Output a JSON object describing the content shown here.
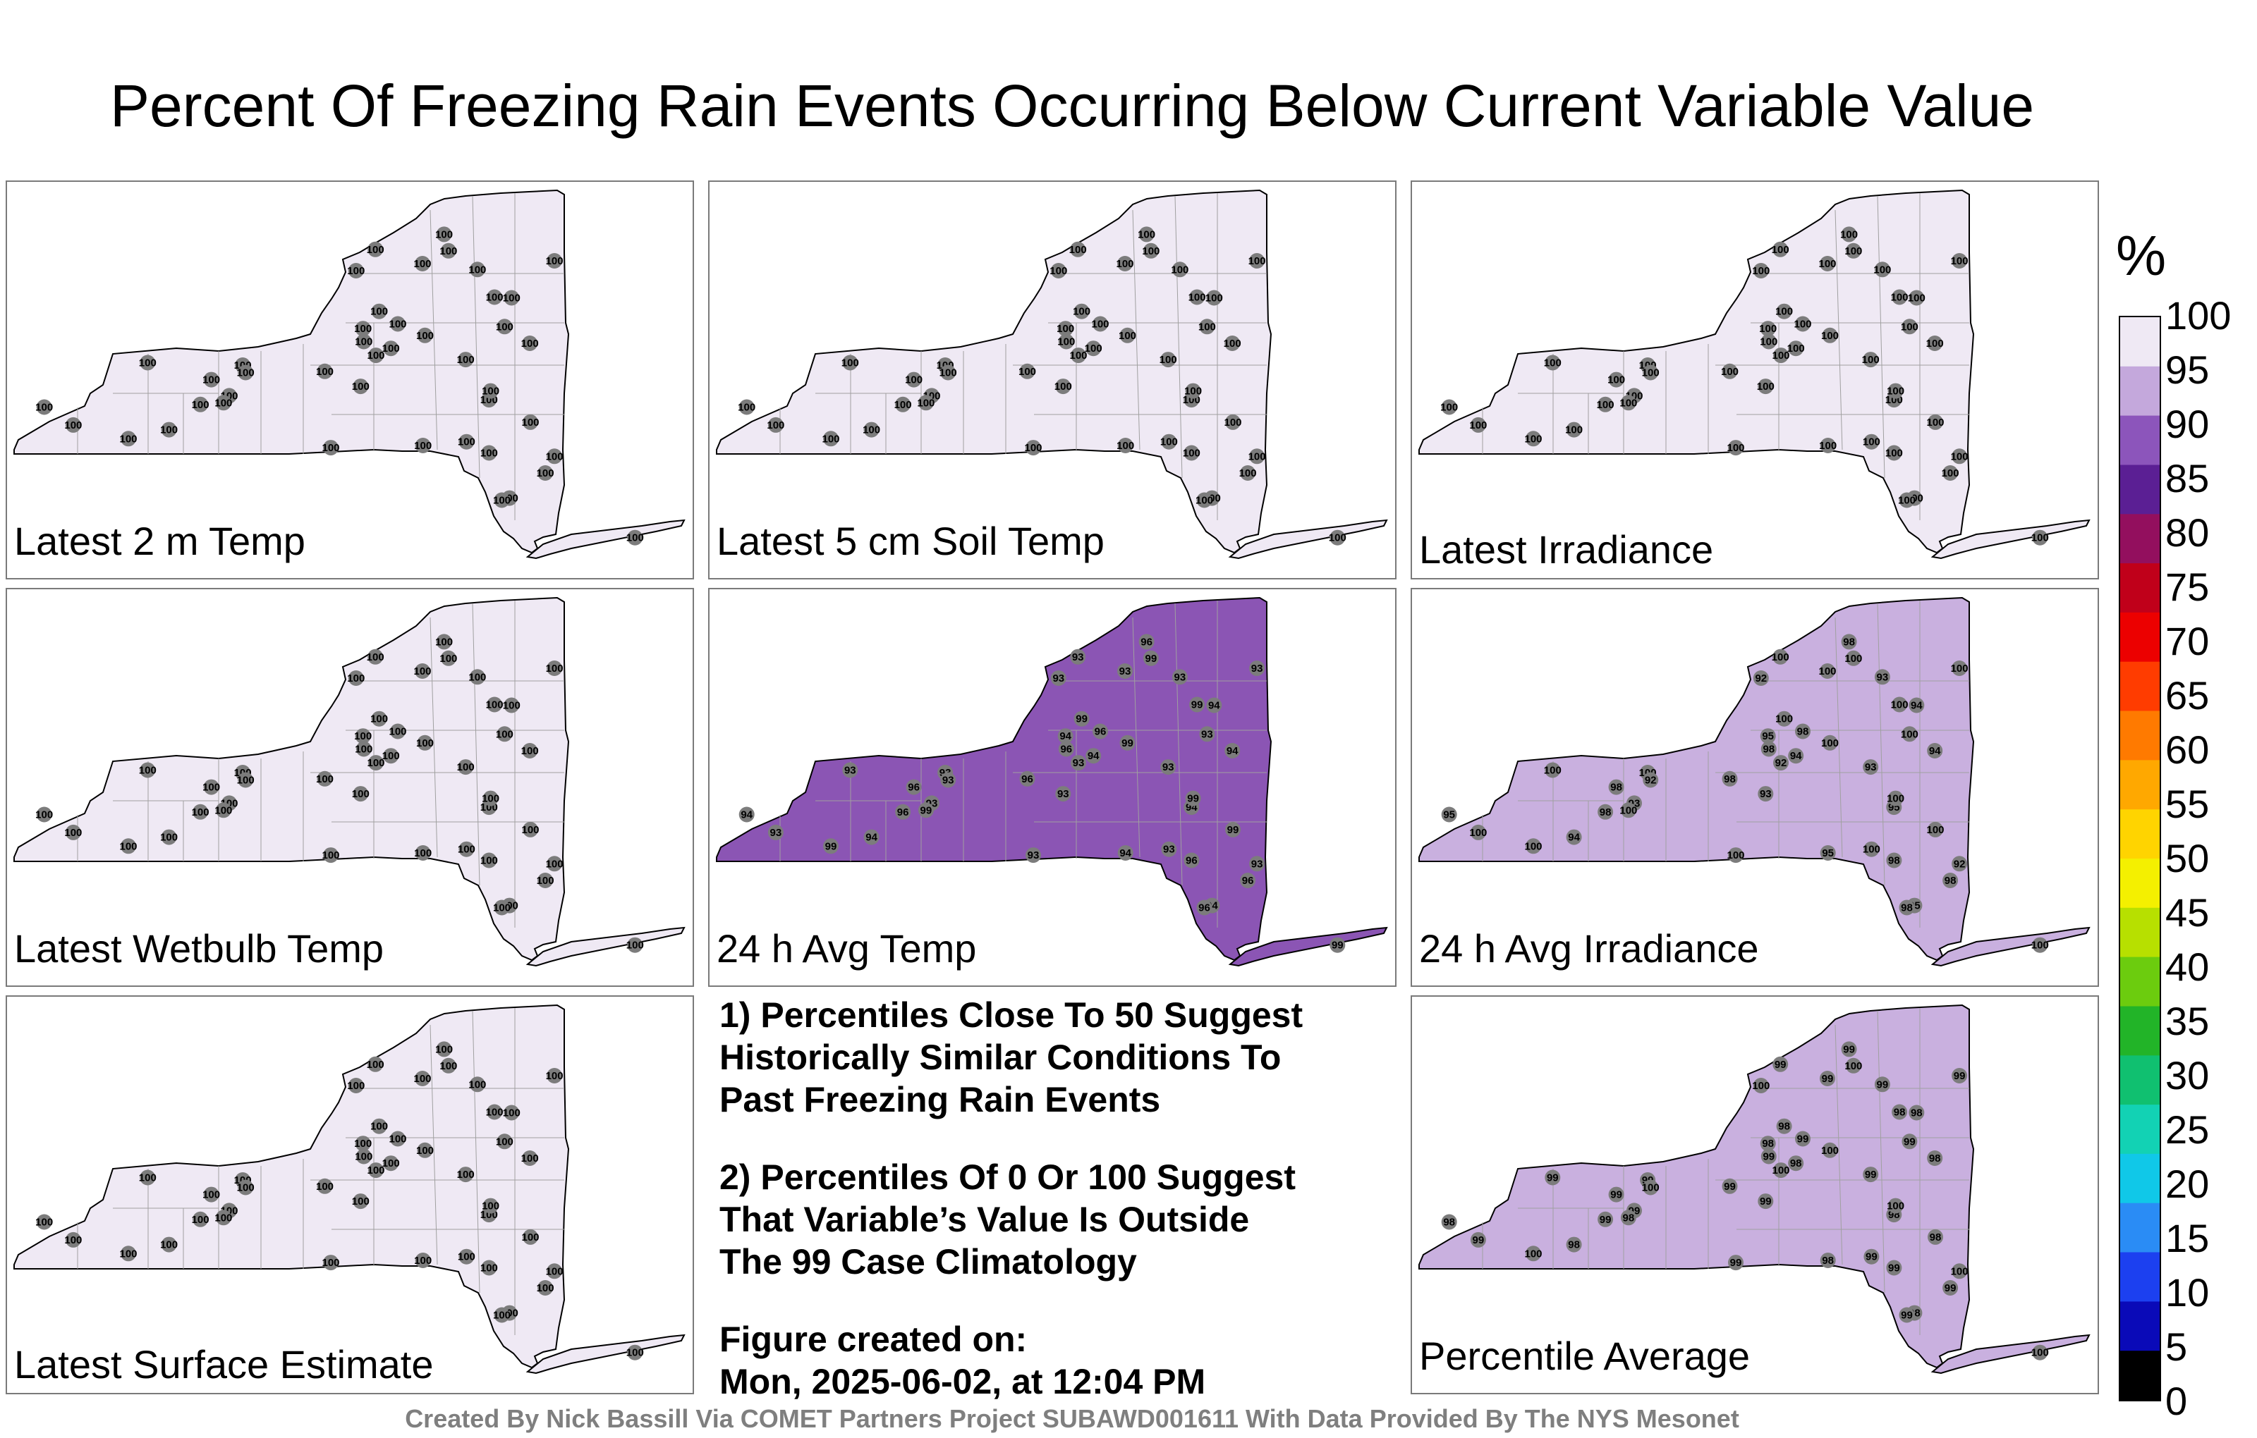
{
  "title": "Percent Of Freezing Rain Events Occurring Below Current Variable Value",
  "colors": {
    "panel_border": "#7a7a7a",
    "state_outline": "#000000",
    "county_line": "#a0a0a0",
    "station_dot": "#7c7c7c",
    "low_fill": "#efe9f4",
    "mid_fill": "#c9b0df",
    "high_fill": "#8b55b4"
  },
  "panels": [
    {
      "label": "Latest 2 m Temp",
      "fill_level": 100,
      "station_values": [
        100
      ]
    },
    {
      "label": "Latest 5 cm Soil Temp",
      "fill_level": 100,
      "station_values": [
        100
      ]
    },
    {
      "label": "Latest Irradiance",
      "fill_level": 100,
      "station_values": [
        100
      ]
    },
    {
      "label": "Latest Wetbulb Temp",
      "fill_level": 100,
      "station_values": [
        100
      ]
    },
    {
      "label": "24 h Avg Temp",
      "fill_level": 93,
      "station_values": [
        93,
        94,
        96,
        99,
        93,
        94,
        93,
        96,
        93,
        99
      ]
    },
    {
      "label": "24 h Avg Irradiance",
      "fill_level": 98,
      "station_values": [
        100,
        95,
        98,
        100,
        93,
        94,
        100,
        98,
        92,
        100
      ]
    },
    {
      "label": "Latest Surface Estimate",
      "fill_level": 100,
      "station_values": [
        100
      ]
    },
    {
      "label": "Percentile Average",
      "fill_level": 99,
      "station_values": [
        99,
        98,
        99,
        100,
        99,
        98,
        99,
        99,
        100,
        98
      ]
    }
  ],
  "notes": {
    "note1": [
      "1) Percentiles Close To 50 Suggest",
      "Historically Similar Conditions To",
      "Past Freezing Rain Events"
    ],
    "note2": [
      "2) Percentiles Of 0 Or 100 Suggest",
      "That Variable’s Value Is Outside",
      "The 99 Case Climatology"
    ],
    "created_label": "Figure created on:",
    "created_date": "Mon, 2025-06-02, at 12:04 PM"
  },
  "footer": "Created By Nick Bassill Via COMET Partners Project SUBAWD001611 With Data Provided By The NYS Mesonet",
  "colorbar": {
    "unit": "%",
    "ticks": [
      "100",
      "95",
      "90",
      "85",
      "80",
      "75",
      "70",
      "65",
      "60",
      "55",
      "50",
      "45",
      "40",
      "35",
      "30",
      "25",
      "20",
      "15",
      "10",
      "5",
      "0"
    ],
    "colors": [
      "#efe9f4",
      "#c4a8dc",
      "#8c55bb",
      "#5b1f94",
      "#930f5e",
      "#c0001a",
      "#ec0000",
      "#ff3c00",
      "#ff7a00",
      "#ffa800",
      "#ffd400",
      "#f4f000",
      "#b7e000",
      "#6ccc0e",
      "#22b428",
      "#10c070",
      "#12d2b4",
      "#10c8e8",
      "#2a8cf5",
      "#1c40f0",
      "#0a0ab8",
      "#000000"
    ]
  }
}
